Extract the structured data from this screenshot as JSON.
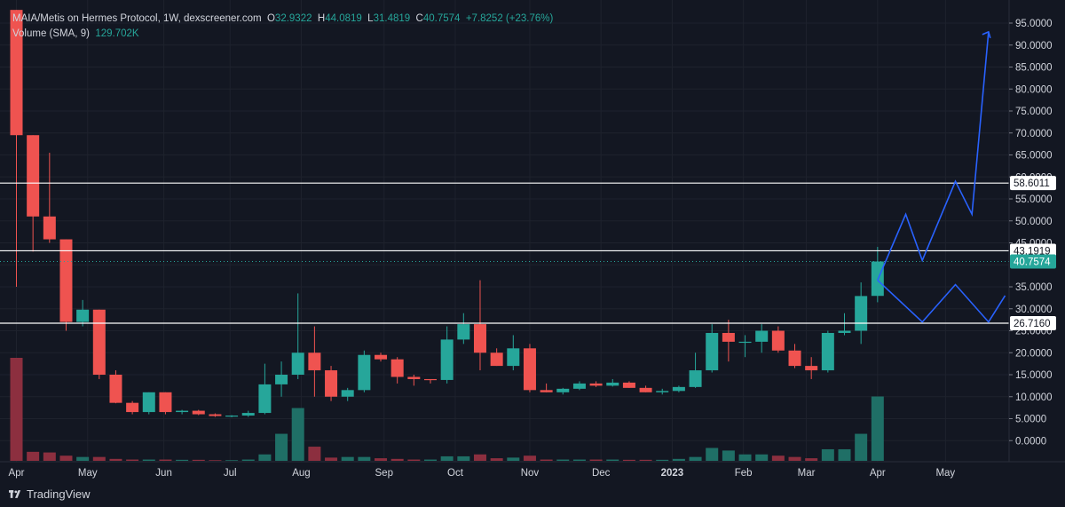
{
  "legend": {
    "symbol": "MAIA/Metis on Hermes Protocol, 1W, dexscreener.com",
    "o_label": "O",
    "o": "32.9322",
    "h_label": "H",
    "h": "44.0819",
    "l_label": "L",
    "l": "31.4819",
    "c_label": "C",
    "c": "40.7574",
    "change": "+7.8252 (+23.76%)",
    "volume_label": "Volume (SMA, 9)",
    "volume_value": "129.702K"
  },
  "brand": {
    "name": "TradingView",
    "icon": "tradingview-logo-icon"
  },
  "colors": {
    "background": "#131722",
    "grid": "#1e222d",
    "up": "#26a69a",
    "down": "#ef5350",
    "up_volume": "#1f6f66",
    "down_volume": "#8c2f3f",
    "projection": "#2962ff",
    "hline": "#ffffff",
    "text": "#d1d4dc"
  },
  "chart_data": {
    "type": "candlestick",
    "title": "MAIA/Metis on Hermes Protocol, 1W, dexscreener.com",
    "ylim": [
      -5,
      98
    ],
    "y_ticks": [
      "95.0000",
      "90.0000",
      "85.0000",
      "80.0000",
      "75.0000",
      "70.0000",
      "65.0000",
      "60.0000",
      "55.0000",
      "50.0000",
      "45.0000",
      "35.0000",
      "30.0000",
      "25.0000",
      "20.0000",
      "15.0000",
      "10.0000",
      "5.0000",
      "0.0000"
    ],
    "x_labels": [
      "Apr",
      "May",
      "Jun",
      "Jul",
      "Aug",
      "Sep",
      "Oct",
      "Nov",
      "Dec",
      "2023",
      "Feb",
      "Mar",
      "Apr",
      "May"
    ],
    "grid": true,
    "candles": [
      {
        "o": 100,
        "h": 100,
        "l": 35,
        "c": 69.5
      },
      {
        "o": 69.5,
        "h": 69.5,
        "l": 43,
        "c": 51
      },
      {
        "o": 51,
        "h": 65.5,
        "l": 45,
        "c": 45.8
      },
      {
        "o": 45.8,
        "h": 45.8,
        "l": 25,
        "c": 27
      },
      {
        "o": 27,
        "h": 32,
        "l": 26,
        "c": 29.8
      },
      {
        "o": 29.8,
        "h": 29.8,
        "l": 14,
        "c": 15
      },
      {
        "o": 15,
        "h": 16,
        "l": 8.5,
        "c": 8.6
      },
      {
        "o": 8.6,
        "h": 9,
        "l": 6,
        "c": 6.5
      },
      {
        "o": 6.5,
        "h": 11,
        "l": 6,
        "c": 11
      },
      {
        "o": 11,
        "h": 11,
        "l": 6,
        "c": 6.5
      },
      {
        "o": 6.5,
        "h": 7,
        "l": 6,
        "c": 6.8
      },
      {
        "o": 6.8,
        "h": 7,
        "l": 5.8,
        "c": 6
      },
      {
        "o": 6,
        "h": 6.2,
        "l": 5.4,
        "c": 5.6
      },
      {
        "o": 5.6,
        "h": 5.8,
        "l": 5.3,
        "c": 5.7
      },
      {
        "o": 5.7,
        "h": 6.8,
        "l": 5.4,
        "c": 6.3
      },
      {
        "o": 6.3,
        "h": 17.5,
        "l": 6,
        "c": 12.8
      },
      {
        "o": 12.8,
        "h": 18,
        "l": 10,
        "c": 15
      },
      {
        "o": 15,
        "h": 33.5,
        "l": 14,
        "c": 20
      },
      {
        "o": 20,
        "h": 26,
        "l": 10,
        "c": 16
      },
      {
        "o": 16,
        "h": 17,
        "l": 9,
        "c": 10
      },
      {
        "o": 10,
        "h": 12,
        "l": 9,
        "c": 11.5
      },
      {
        "o": 11.5,
        "h": 20.5,
        "l": 11,
        "c": 19.5
      },
      {
        "o": 19.5,
        "h": 20,
        "l": 18,
        "c": 18.5
      },
      {
        "o": 18.5,
        "h": 19,
        "l": 13,
        "c": 14.5
      },
      {
        "o": 14.5,
        "h": 15,
        "l": 12.5,
        "c": 14
      },
      {
        "o": 14,
        "h": 14,
        "l": 13,
        "c": 13.8
      },
      {
        "o": 13.8,
        "h": 26,
        "l": 13,
        "c": 23
      },
      {
        "o": 23,
        "h": 29,
        "l": 22,
        "c": 26.5
      },
      {
        "o": 26.5,
        "h": 36.5,
        "l": 16,
        "c": 20
      },
      {
        "o": 20,
        "h": 21,
        "l": 17,
        "c": 17
      },
      {
        "o": 17,
        "h": 24,
        "l": 16,
        "c": 21
      },
      {
        "o": 21,
        "h": 22,
        "l": 11,
        "c": 11.5
      },
      {
        "o": 11.5,
        "h": 13,
        "l": 11,
        "c": 11
      },
      {
        "o": 11,
        "h": 12,
        "l": 10.5,
        "c": 11.8
      },
      {
        "o": 11.8,
        "h": 13.5,
        "l": 11.5,
        "c": 13
      },
      {
        "o": 13,
        "h": 13.5,
        "l": 12.2,
        "c": 12.5
      },
      {
        "o": 12.5,
        "h": 14,
        "l": 12.3,
        "c": 13.2
      },
      {
        "o": 13.2,
        "h": 13.5,
        "l": 12,
        "c": 12
      },
      {
        "o": 12,
        "h": 12.5,
        "l": 11,
        "c": 11
      },
      {
        "o": 11,
        "h": 11.8,
        "l": 10.5,
        "c": 11.3
      },
      {
        "o": 11.3,
        "h": 12.5,
        "l": 11,
        "c": 12.2
      },
      {
        "o": 12.2,
        "h": 20,
        "l": 12,
        "c": 16
      },
      {
        "o": 16,
        "h": 26.5,
        "l": 15.5,
        "c": 24.5
      },
      {
        "o": 24.5,
        "h": 27.5,
        "l": 18,
        "c": 22.5
      },
      {
        "o": 22.5,
        "h": 24,
        "l": 19,
        "c": 22.5
      },
      {
        "o": 22.5,
        "h": 26.5,
        "l": 20,
        "c": 25
      },
      {
        "o": 25,
        "h": 26,
        "l": 20,
        "c": 20.5
      },
      {
        "o": 20.5,
        "h": 22,
        "l": 16.5,
        "c": 17
      },
      {
        "o": 17,
        "h": 19,
        "l": 14,
        "c": 16
      },
      {
        "o": 16,
        "h": 25,
        "l": 15.5,
        "c": 24.5
      },
      {
        "o": 24.5,
        "h": 29,
        "l": 24,
        "c": 25
      },
      {
        "o": 25,
        "h": 36,
        "l": 22,
        "c": 32.9
      },
      {
        "o": 32.9322,
        "h": 44.0819,
        "l": 31.4819,
        "c": 40.7574
      }
    ],
    "volume_ylim": [
      0,
      100
    ],
    "volume": [
      {
        "v": 80,
        "up": false
      },
      {
        "v": 7,
        "up": false
      },
      {
        "v": 6.5,
        "up": false
      },
      {
        "v": 4,
        "up": false
      },
      {
        "v": 3,
        "up": true
      },
      {
        "v": 3,
        "up": false
      },
      {
        "v": 1.5,
        "up": false
      },
      {
        "v": 1,
        "up": false
      },
      {
        "v": 1,
        "up": true
      },
      {
        "v": 1,
        "up": false
      },
      {
        "v": 0.8,
        "up": true
      },
      {
        "v": 0.8,
        "up": false
      },
      {
        "v": 0.5,
        "up": false
      },
      {
        "v": 0.5,
        "up": true
      },
      {
        "v": 1,
        "up": true
      },
      {
        "v": 5,
        "up": true
      },
      {
        "v": 21,
        "up": true
      },
      {
        "v": 41,
        "up": true
      },
      {
        "v": 11,
        "up": false
      },
      {
        "v": 2.5,
        "up": false
      },
      {
        "v": 3,
        "up": true
      },
      {
        "v": 3,
        "up": true
      },
      {
        "v": 2,
        "up": false
      },
      {
        "v": 1.5,
        "up": false
      },
      {
        "v": 1,
        "up": false
      },
      {
        "v": 1,
        "up": true
      },
      {
        "v": 3.5,
        "up": true
      },
      {
        "v": 3.5,
        "up": true
      },
      {
        "v": 5,
        "up": false
      },
      {
        "v": 2,
        "up": false
      },
      {
        "v": 2.5,
        "up": true
      },
      {
        "v": 4,
        "up": false
      },
      {
        "v": 1,
        "up": false
      },
      {
        "v": 1,
        "up": true
      },
      {
        "v": 1,
        "up": true
      },
      {
        "v": 1,
        "up": false
      },
      {
        "v": 1,
        "up": true
      },
      {
        "v": 0.8,
        "up": false
      },
      {
        "v": 0.8,
        "up": false
      },
      {
        "v": 0.8,
        "up": true
      },
      {
        "v": 1.5,
        "up": true
      },
      {
        "v": 3,
        "up": true
      },
      {
        "v": 10,
        "up": true
      },
      {
        "v": 8,
        "up": true
      },
      {
        "v": 5,
        "up": true
      },
      {
        "v": 5,
        "up": true
      },
      {
        "v": 4,
        "up": false
      },
      {
        "v": 3,
        "up": false
      },
      {
        "v": 2,
        "up": false
      },
      {
        "v": 9,
        "up": true
      },
      {
        "v": 9,
        "up": true
      },
      {
        "v": 21,
        "up": true
      },
      {
        "v": 50,
        "up": true
      }
    ],
    "horizontal_levels": [
      {
        "value": 58.6011,
        "label": "58.6011"
      },
      {
        "value": 43.1919,
        "label": "43.1919"
      },
      {
        "value": 26.716,
        "label": "26.7160"
      }
    ],
    "last_price": {
      "value": 40.7574,
      "label": "40.7574"
    },
    "projections": [
      {
        "name": "bullish",
        "points": [
          [
            52,
            36.5
          ],
          [
            53.7,
            51.5
          ],
          [
            54.7,
            41
          ],
          [
            56.7,
            59
          ],
          [
            57.7,
            51.5
          ],
          [
            58.7,
            93
          ]
        ]
      },
      {
        "name": "bearish",
        "points": [
          [
            52,
            36.5
          ],
          [
            54.7,
            27
          ],
          [
            56.7,
            35.5
          ],
          [
            58.7,
            27
          ],
          [
            59.7,
            33
          ]
        ]
      }
    ]
  }
}
